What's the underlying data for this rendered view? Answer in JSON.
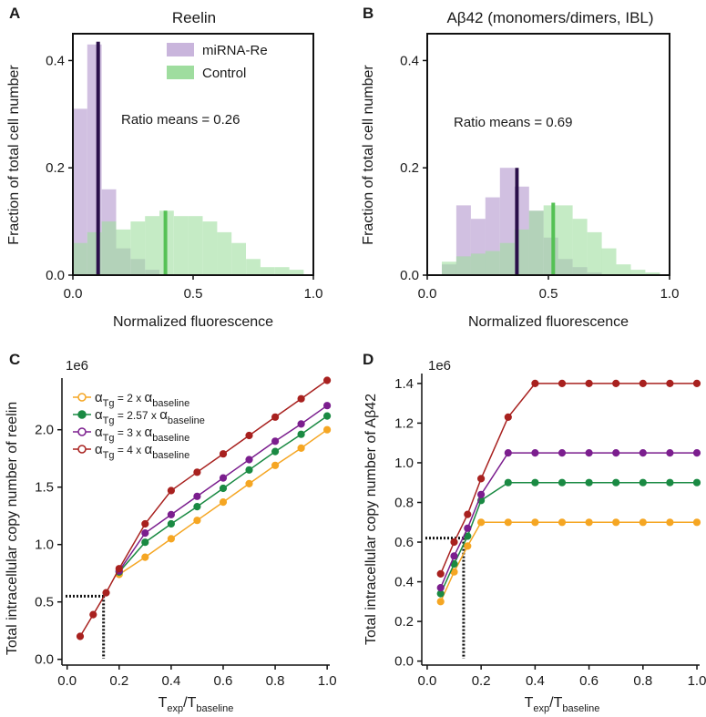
{
  "panels": {
    "a": "A",
    "b": "B",
    "c": "C",
    "d": "D"
  },
  "chart_data": [
    {
      "id": "A",
      "type": "histogram",
      "title": "Reelin",
      "xlabel": "Normalized fluorescence",
      "ylabel": "Fraction of total cell number",
      "xlim": [
        0,
        1
      ],
      "ylim": [
        0,
        0.45
      ],
      "xticks": [
        "0.0",
        "0.5",
        "1.0"
      ],
      "yticks": [
        "0.0",
        "0.2",
        "0.4"
      ],
      "bin_edges": [
        0.0,
        0.06,
        0.12,
        0.18,
        0.24,
        0.3,
        0.36,
        0.42,
        0.48,
        0.54,
        0.6,
        0.66,
        0.72,
        0.78,
        0.84,
        0.9,
        0.96
      ],
      "series": [
        {
          "name": "miRNA-Re",
          "color": "#c9b5dc",
          "values": [
            0.31,
            0.43,
            0.16,
            0.05,
            0.03,
            0.01,
            0.0,
            0.0,
            0.0,
            0.0,
            0.0,
            0.0,
            0.0,
            0.0,
            0.0,
            0.0
          ]
        },
        {
          "name": "Control",
          "color": "#9fdd9f",
          "values": [
            0.06,
            0.08,
            0.1,
            0.085,
            0.1,
            0.11,
            0.12,
            0.11,
            0.11,
            0.1,
            0.08,
            0.06,
            0.03,
            0.015,
            0.015,
            0.01
          ]
        }
      ],
      "mean_lines": [
        {
          "name": "miRNA-Re mean",
          "color": "#2a0f4a",
          "x": 0.105,
          "height": 0.435
        },
        {
          "name": "Control mean",
          "color": "#55c155",
          "x": 0.385,
          "height": 0.12
        }
      ],
      "annotation": "Ratio means = 0.26",
      "legend": "top-right"
    },
    {
      "id": "B",
      "type": "histogram",
      "title": "Aβ42 (monomers/dimers, IBL)",
      "xlabel": "Normalized fluorescence",
      "ylabel": "Fraction of total cell number",
      "xlim": [
        0,
        1
      ],
      "ylim": [
        0,
        0.45
      ],
      "xticks": [
        "0.0",
        "0.5",
        "1.0"
      ],
      "yticks": [
        "0.0",
        "0.2",
        "0.4"
      ],
      "bin_edges": [
        0.0,
        0.06,
        0.12,
        0.18,
        0.24,
        0.3,
        0.36,
        0.42,
        0.48,
        0.54,
        0.6,
        0.66,
        0.72,
        0.78,
        0.84,
        0.9,
        0.96
      ],
      "series": [
        {
          "name": "miRNA-Re",
          "color": "#c9b5dc",
          "values": [
            0.0,
            0.02,
            0.13,
            0.105,
            0.145,
            0.2,
            0.165,
            0.12,
            0.07,
            0.03,
            0.015,
            0.005,
            0.0,
            0.0,
            0.0,
            0.0
          ]
        },
        {
          "name": "Control",
          "color": "#9fdd9f",
          "values": [
            0.0,
            0.025,
            0.035,
            0.04,
            0.045,
            0.06,
            0.085,
            0.12,
            0.13,
            0.13,
            0.105,
            0.08,
            0.05,
            0.02,
            0.01,
            0.005
          ]
        }
      ],
      "mean_lines": [
        {
          "name": "miRNA-Re mean",
          "color": "#2a0f4a",
          "x": 0.37,
          "height": 0.2
        },
        {
          "name": "Control mean",
          "color": "#55c155",
          "x": 0.52,
          "height": 0.135
        }
      ],
      "annotation": "Ratio means = 0.69"
    },
    {
      "id": "C",
      "type": "line",
      "xlabel": "T_exp/T_baseline",
      "ylabel": "Total intracellular copy number of reelin",
      "offset_label": "1e6",
      "xlim": [
        -0.02,
        1.01
      ],
      "ylim": [
        -0.05,
        2.45
      ],
      "xticks": [
        "0.0",
        "0.2",
        "0.4",
        "0.6",
        "0.8",
        "1.0"
      ],
      "yticks": [
        "0.0",
        "0.5",
        "1.0",
        "1.5",
        "2.0"
      ],
      "x": [
        0.05,
        0.1,
        0.15,
        0.2,
        0.3,
        0.4,
        0.5,
        0.6,
        0.7,
        0.8,
        0.9,
        1.0
      ],
      "series": [
        {
          "name": "2 x α baseline",
          "color": "#f5a623",
          "values": [
            null,
            null,
            null,
            0.74,
            0.89,
            1.05,
            1.21,
            1.37,
            1.53,
            1.69,
            1.84,
            2.0
          ]
        },
        {
          "name": "2.57 x α baseline",
          "color": "#1a8a43",
          "values": [
            null,
            null,
            null,
            0.76,
            1.02,
            1.18,
            1.33,
            1.49,
            1.65,
            1.81,
            1.96,
            2.12
          ]
        },
        {
          "name": "3 x α baseline",
          "color": "#7b1e8e",
          "values": [
            null,
            null,
            null,
            0.77,
            1.1,
            1.26,
            1.42,
            1.58,
            1.74,
            1.9,
            2.05,
            2.21
          ]
        },
        {
          "name": "4 x α baseline",
          "color": "#a8211f",
          "values": [
            0.2,
            0.39,
            0.58,
            0.79,
            1.18,
            1.47,
            1.63,
            1.79,
            1.95,
            2.11,
            2.27,
            2.43
          ]
        }
      ],
      "reference": {
        "x": 0.14,
        "y": 0.55
      },
      "legend": "top-left"
    },
    {
      "id": "D",
      "type": "line",
      "xlabel": "T_exp/T_baseline",
      "ylabel": "Total intracellular copy number of Aβ42",
      "offset_label": "1e6",
      "xlim": [
        -0.02,
        1.01
      ],
      "ylim": [
        -0.02,
        1.45
      ],
      "xticks": [
        "0.0",
        "0.2",
        "0.4",
        "0.6",
        "0.8",
        "1.0"
      ],
      "yticks": [
        "0.0",
        "0.2",
        "0.4",
        "0.6",
        "0.8",
        "1.0",
        "1.2",
        "1.4"
      ],
      "x": [
        0.05,
        0.1,
        0.15,
        0.2,
        0.3,
        0.4,
        0.5,
        0.6,
        0.7,
        0.8,
        0.9,
        1.0
      ],
      "series": [
        {
          "name": "2 x α baseline",
          "color": "#f5a623",
          "values": [
            0.3,
            0.45,
            0.58,
            0.7,
            0.7,
            0.7,
            0.7,
            0.7,
            0.7,
            0.7,
            0.7,
            0.7
          ]
        },
        {
          "name": "2.57 x α baseline",
          "color": "#1a8a43",
          "values": [
            0.34,
            0.49,
            0.63,
            0.81,
            0.9,
            0.9,
            0.9,
            0.9,
            0.9,
            0.9,
            0.9,
            0.9
          ]
        },
        {
          "name": "3 x α baseline",
          "color": "#7b1e8e",
          "values": [
            0.37,
            0.53,
            0.67,
            0.84,
            1.05,
            1.05,
            1.05,
            1.05,
            1.05,
            1.05,
            1.05,
            1.05
          ]
        },
        {
          "name": "4 x α baseline",
          "color": "#a8211f",
          "values": [
            0.44,
            0.6,
            0.74,
            0.92,
            1.23,
            1.4,
            1.4,
            1.4,
            1.4,
            1.4,
            1.4,
            1.4
          ]
        }
      ],
      "reference": {
        "x": 0.135,
        "y": 0.62
      }
    }
  ],
  "legend_c": [
    {
      "sym": "α",
      "sub": "Tg",
      "mid": " = 2 x ",
      "sym2": "α",
      "sub2": "baseline",
      "color": "#f5a623"
    },
    {
      "sym": "α",
      "sub": "Tg",
      "mid": " = 2.57 x ",
      "sym2": "α",
      "sub2": "baseline",
      "color": "#1a8a43"
    },
    {
      "sym": "α",
      "sub": "Tg",
      "mid": " = 3 x ",
      "sym2": "α",
      "sub2": "baseline",
      "color": "#7b1e8e"
    },
    {
      "sym": "α",
      "sub": "Tg",
      "mid": " = 4 x ",
      "sym2": "α",
      "sub2": "baseline",
      "color": "#a8211f"
    }
  ],
  "xlabel_parts": {
    "base": "T",
    "sub1": "exp",
    "slash": "/T",
    "sub2": "baseline"
  }
}
